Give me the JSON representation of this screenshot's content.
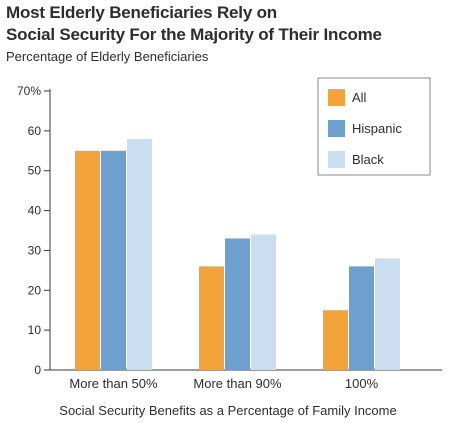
{
  "chart_data": {
    "type": "bar",
    "title_lines": [
      "Most Elderly Beneficiaries Rely on",
      "Social Security For the Majority of Their Income"
    ],
    "subtitle": "Percentage of Elderly Beneficiaries",
    "xlabel": "Social Security Benefits as a Percentage of Family Income",
    "categories": [
      "More than 50%",
      "More than 90%",
      "100%"
    ],
    "series": [
      {
        "name": "All",
        "color": "#f2a33a",
        "values": [
          55,
          26,
          15
        ]
      },
      {
        "name": "Hispanic",
        "color": "#6d9fcf",
        "values": [
          55,
          33,
          26
        ]
      },
      {
        "name": "Black",
        "color": "#c9dff1",
        "values": [
          58,
          34,
          28
        ]
      }
    ],
    "ylim": [
      0,
      70
    ],
    "yticks": [
      0,
      10,
      20,
      30,
      40,
      50,
      60,
      70
    ],
    "ytick_labels": [
      "0",
      "10",
      "20",
      "30",
      "40",
      "50",
      "60",
      "70%"
    ],
    "legend_position": "top-right",
    "grid": false
  }
}
